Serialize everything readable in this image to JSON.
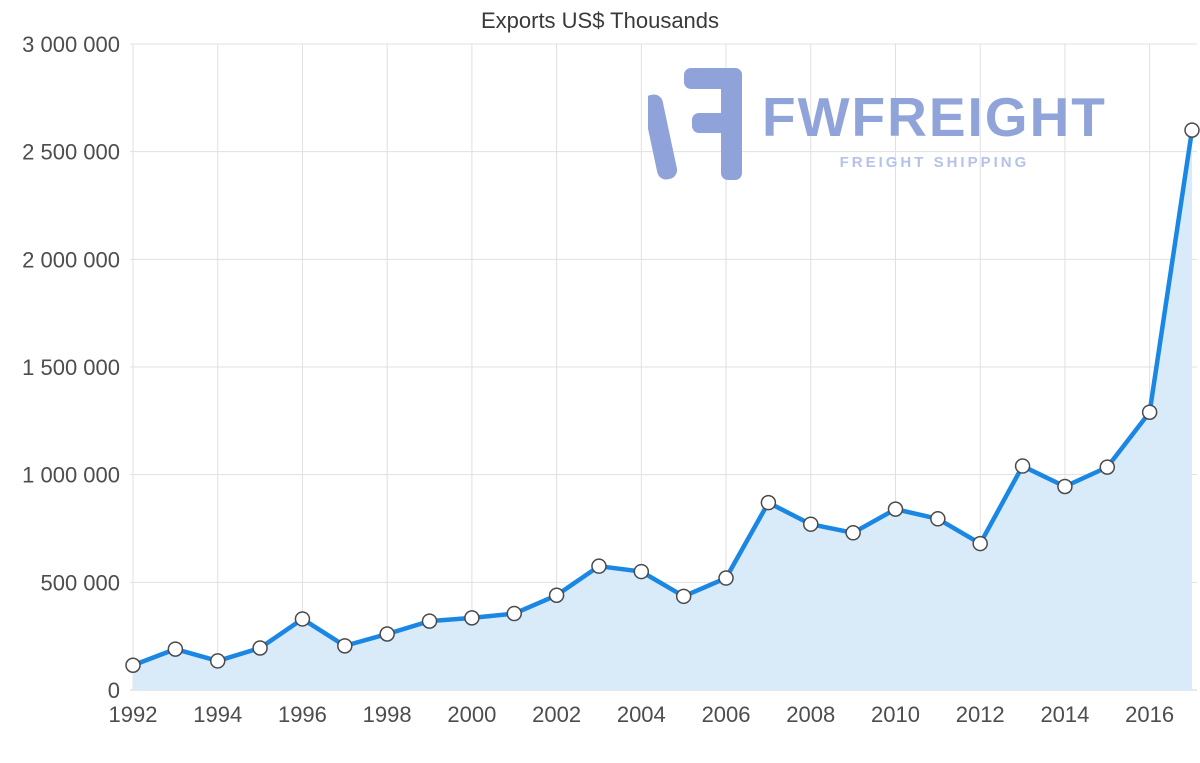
{
  "page": {
    "background": "#ffffff"
  },
  "chart_data": {
    "type": "area",
    "title": "Exports US$ Thousands",
    "x": [
      1992,
      1993,
      1994,
      1995,
      1996,
      1997,
      1998,
      1999,
      2000,
      2001,
      2002,
      2003,
      2004,
      2005,
      2006,
      2007,
      2008,
      2009,
      2010,
      2011,
      2012,
      2013,
      2014,
      2015,
      2016,
      2017
    ],
    "values": [
      115000,
      190000,
      135000,
      195000,
      330000,
      205000,
      260000,
      320000,
      335000,
      355000,
      440000,
      575000,
      550000,
      435000,
      520000,
      870000,
      770000,
      730000,
      840000,
      795000,
      680000,
      1040000,
      945000,
      1035000,
      1290000,
      2600000
    ],
    "xlabel": "",
    "ylabel": "",
    "ylim": [
      0,
      3000000
    ],
    "y_ticks": [
      0,
      500000,
      1000000,
      1500000,
      2000000,
      2500000,
      3000000
    ],
    "y_tick_labels": [
      "0",
      "500 000",
      "1 000 000",
      "1 500 000",
      "2 000 000",
      "2 500 000",
      "3 000 000"
    ],
    "x_ticks": [
      1992,
      1994,
      1996,
      1998,
      2000,
      2002,
      2004,
      2006,
      2008,
      2010,
      2012,
      2014,
      2016
    ],
    "x_tick_labels": [
      "1992",
      "1994",
      "1996",
      "1998",
      "2000",
      "2002",
      "2004",
      "2006",
      "2008",
      "2010",
      "2012",
      "2014",
      "2016"
    ],
    "grid": true,
    "legend": false,
    "line_color": "#1b87e5",
    "area_color": "#d9eaf9",
    "marker_fill": "#ffffff",
    "marker_stroke": "#4a4a4a",
    "grid_color": "#e0e0e0",
    "axis_color": "#d2d2d2",
    "label_color": "#4d4d4d"
  },
  "logo": {
    "name": "FWFREIGHT",
    "tagline": "FREIGHT SHIPPING",
    "color": "#91a4da",
    "tagline_color": "#b5c2e9",
    "icon_color": "#8fa2da"
  }
}
